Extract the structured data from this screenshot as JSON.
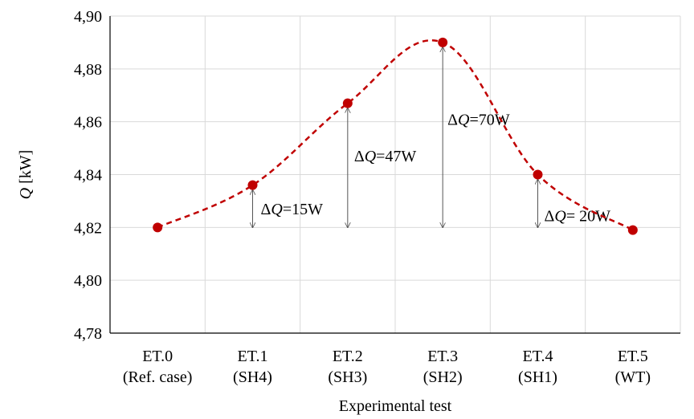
{
  "chart_data": {
    "type": "line",
    "title": "",
    "xlabel": "Experimental test",
    "ylabel_italic": "Q",
    "ylabel_unit": " [kW]",
    "categories": [
      [
        "ET.0",
        "(Ref. case)"
      ],
      [
        "ET.1",
        "(SH4)"
      ],
      [
        "ET.2",
        "(SH3)"
      ],
      [
        "ET.3",
        "(SH2)"
      ],
      [
        "ET.4",
        "(SH1)"
      ],
      [
        "ET.5",
        "(WT)"
      ]
    ],
    "values": [
      4.82,
      4.836,
      4.867,
      4.89,
      4.84,
      4.819
    ],
    "ylim": [
      4.78,
      4.9
    ],
    "yticks": [
      "4,78",
      "4,80",
      "4,82",
      "4,84",
      "4,86",
      "4,88",
      "4,90"
    ],
    "grid": true,
    "line_style": "dashed smooth",
    "series_color": "#c00000",
    "annotations": [
      {
        "category": 1,
        "delta_prefix": "Δ",
        "delta_q": "Q",
        "value_text": "=15W",
        "from": 4.82,
        "to": 4.836
      },
      {
        "category": 2,
        "delta_prefix": "Δ",
        "delta_q": "Q",
        "value_text": "=47W",
        "from": 4.82,
        "to": 4.867
      },
      {
        "category": 3,
        "delta_prefix": "Δ",
        "delta_q": "Q",
        "value_text": "=70W",
        "from": 4.82,
        "to": 4.89
      },
      {
        "category": 4,
        "delta_prefix": "Δ",
        "delta_q": "Q",
        "value_text": "= 20W",
        "from": 4.82,
        "to": 4.84
      }
    ]
  }
}
